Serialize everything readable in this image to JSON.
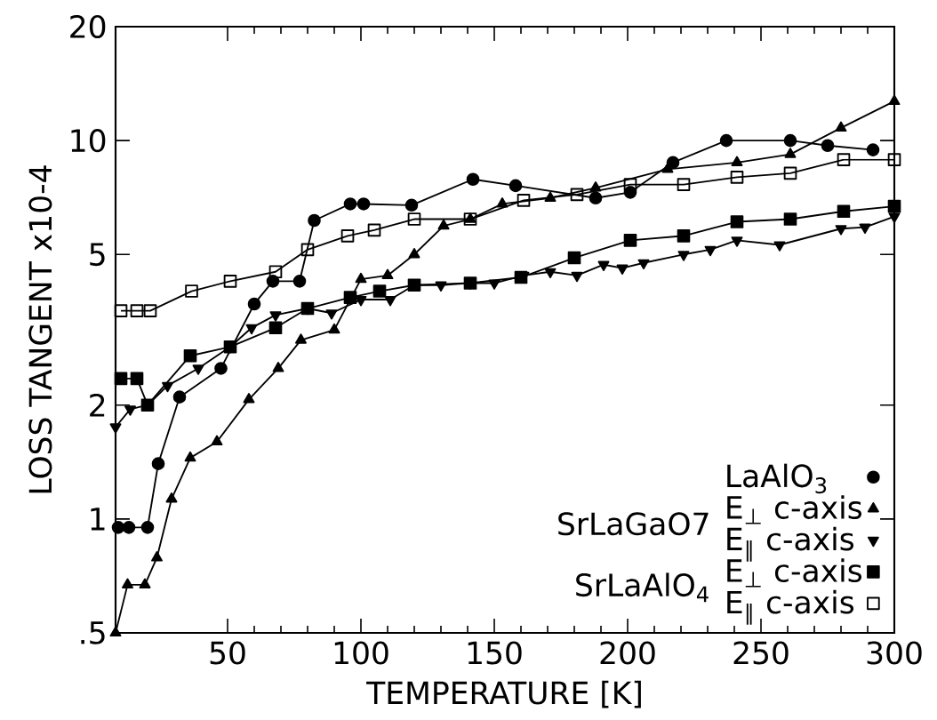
{
  "chart_data": {
    "type": "line",
    "xlabel": "TEMPERATURE  [K]",
    "ylabel": "LOSS   TANGENT   x10-4",
    "log": "y",
    "grid": false,
    "legend": "bottom right",
    "xlim": [
      8,
      300
    ],
    "xticks": [
      50,
      100,
      150,
      200,
      250,
      300
    ],
    "ylim": [
      0.5,
      20
    ],
    "yticks": [
      {
        "value": 0.5,
        "label": ".5"
      },
      1,
      2,
      5,
      10,
      20
    ],
    "annotations": [
      "SrLaGaO7",
      "SrLaAlO$_{4}$"
    ],
    "series": [
      {
        "name": "LaAlO$_{3}$",
        "color": "#000000",
        "marker": "circle",
        "x": [
          9,
          13,
          20,
          24,
          32,
          47.5,
          60,
          67,
          77,
          82.5,
          96,
          101,
          119,
          142,
          158,
          188,
          201,
          217,
          237,
          261,
          275,
          292
        ],
        "values": [
          0.95,
          0.95,
          0.95,
          1.4,
          2.1,
          2.5,
          3.7,
          4.25,
          4.25,
          6.15,
          6.8,
          6.8,
          6.75,
          7.9,
          7.6,
          7.05,
          7.3,
          8.75,
          10.0,
          10.0,
          9.7,
          9.45
        ]
      },
      {
        "name": "E$_{⊥}$ c-axis",
        "color": "#000000",
        "marker": "triangle",
        "x": [
          8,
          12.5,
          19,
          23.5,
          29,
          36,
          46,
          58,
          69,
          77.5,
          90,
          100,
          110,
          120,
          131,
          141,
          153,
          171,
          188,
          215,
          241,
          261,
          280,
          300
        ],
        "values": [
          0.5,
          0.67,
          0.67,
          0.79,
          1.13,
          1.45,
          1.6,
          2.07,
          2.5,
          2.97,
          3.16,
          4.3,
          4.4,
          5.0,
          5.95,
          6.2,
          6.8,
          7.05,
          7.5,
          8.4,
          8.75,
          9.2,
          10.8,
          12.7
        ]
      },
      {
        "name": "E$_{∥}$ c-axis",
        "color": "#000000",
        "marker": "triangle-down",
        "x": [
          8,
          13.5,
          20,
          27.5,
          39,
          51,
          59,
          68,
          80,
          89,
          100,
          111,
          120,
          130,
          141,
          150,
          161,
          171,
          181,
          191,
          198,
          206,
          221,
          231,
          241,
          257,
          280,
          289,
          300
        ],
        "values": [
          1.75,
          1.95,
          2.0,
          2.25,
          2.5,
          2.85,
          3.2,
          3.46,
          3.6,
          3.5,
          3.8,
          3.8,
          4.15,
          4.15,
          4.2,
          4.2,
          4.4,
          4.5,
          4.4,
          4.7,
          4.6,
          4.75,
          5.0,
          5.15,
          5.45,
          5.3,
          5.85,
          5.9,
          6.3
        ]
      },
      {
        "name": "E$_{⊥}$ c-axis",
        "color": "#000000",
        "marker": "square",
        "x": [
          10,
          16,
          20,
          36,
          51,
          68,
          80,
          96,
          107,
          120,
          141,
          160,
          180,
          201,
          221,
          241,
          261,
          281,
          300
        ],
        "values": [
          2.35,
          2.35,
          2.0,
          2.7,
          2.85,
          3.2,
          3.6,
          3.85,
          4.0,
          4.15,
          4.2,
          4.35,
          4.9,
          5.45,
          5.6,
          6.1,
          6.2,
          6.5,
          6.7
        ]
      },
      {
        "name": "E$_{∥}$ c-axis",
        "color": "#000000",
        "marker": "square-open",
        "x": [
          10,
          16,
          21,
          36.5,
          51,
          68,
          80,
          95,
          105,
          120,
          141,
          161,
          181,
          201,
          221,
          241,
          261,
          281,
          300
        ],
        "values": [
          3.55,
          3.55,
          3.55,
          4.0,
          4.25,
          4.5,
          5.15,
          5.6,
          5.8,
          6.2,
          6.2,
          6.95,
          7.2,
          7.65,
          7.65,
          8.0,
          8.2,
          8.9,
          8.9
        ]
      }
    ]
  }
}
